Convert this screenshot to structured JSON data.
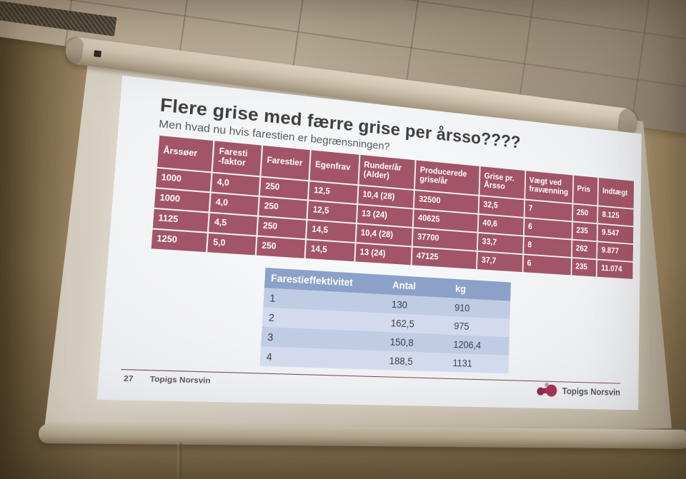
{
  "slide": {
    "title": "Flere grise med færre grise per årsso????",
    "subtitle": "Men hvad nu hvis farestien er begrænsningen?",
    "page_number": "27",
    "footer_brand": "Topigs Norsvin",
    "logo_text": "Topigs Norsvin",
    "main_table": {
      "headers": [
        "Årssøer",
        "Faresti\n-faktor",
        "Farestier",
        "Egenfrav",
        "Runder/år (Alder)",
        "Producerede grise/år",
        "Grise pr. Årsso",
        "Vægt ved fravænning",
        "Pris",
        "Indtægt"
      ],
      "rows": [
        [
          "1000",
          "4,0",
          "250",
          "12,5",
          "10,4 (28)",
          "32500",
          "32,5",
          "7",
          "250",
          "8.125"
        ],
        [
          "1000",
          "4,0",
          "250",
          "12,5",
          "13 (24)",
          "40625",
          "40,6",
          "6",
          "235",
          "9.547"
        ],
        [
          "1125",
          "4,5",
          "250",
          "14,5",
          "10,4 (28)",
          "37700",
          "33,7",
          "8",
          "262",
          "9.877"
        ],
        [
          "1250",
          "5,0",
          "250",
          "14,5",
          "13 (24)",
          "47125",
          "37,7",
          "6",
          "235",
          "11.074"
        ]
      ]
    },
    "secondary_table": {
      "headers": [
        "Farestieffektivitet",
        "Antal",
        "kg"
      ],
      "rows": [
        [
          "1",
          "130",
          "910"
        ],
        [
          "2",
          "162,5",
          "975"
        ],
        [
          "3",
          "150,8",
          "1206,4"
        ],
        [
          "4",
          "188,5",
          "1131"
        ]
      ]
    },
    "colors": {
      "table_maroon": "#a25568",
      "table_blue_header": "#8ba1c7",
      "table_blue_row_dark": "#bfcce4",
      "table_blue_row_light": "#d4daee",
      "footer_line": "#7d4a55",
      "brand_maroon": "#9c2e51"
    }
  }
}
